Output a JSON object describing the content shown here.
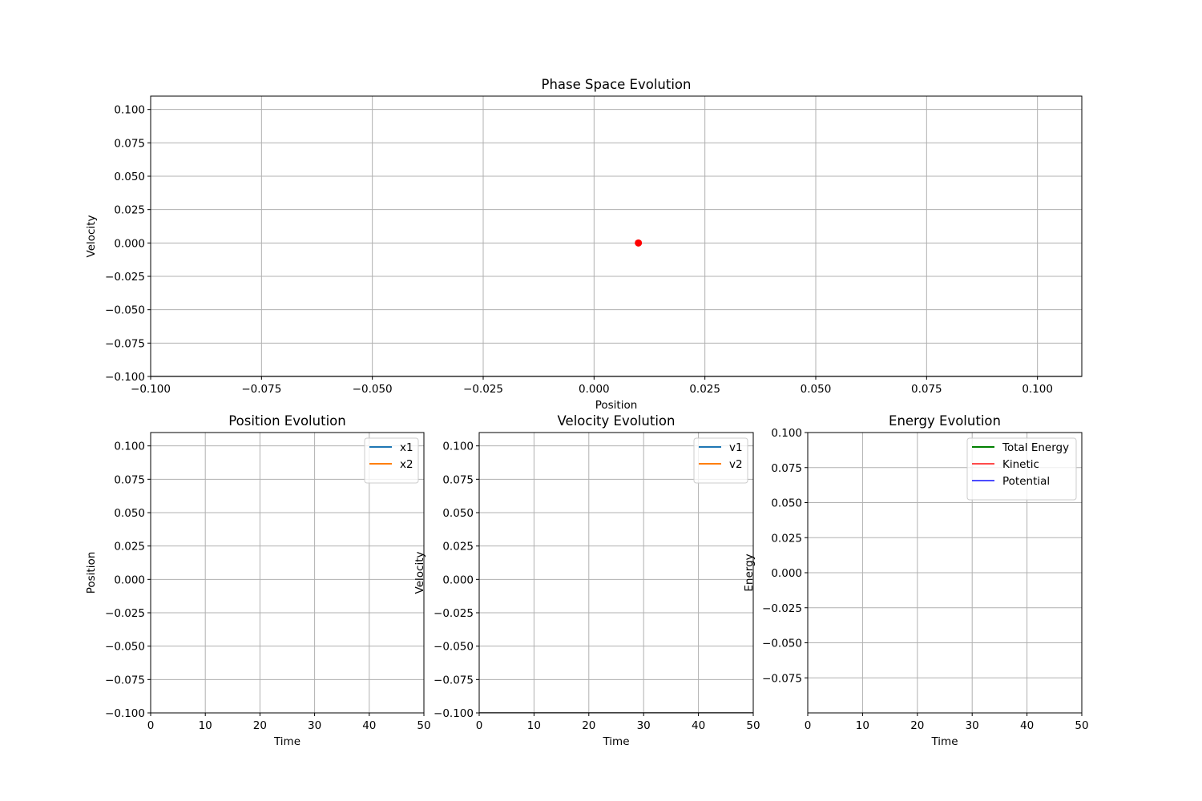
{
  "chart_data": [
    {
      "id": "phase",
      "type": "scatter",
      "title": "Phase Space Evolution",
      "xlabel": "Position",
      "ylabel": "Velocity",
      "xlim": [
        -0.1,
        0.11
      ],
      "ylim": [
        -0.1,
        0.11
      ],
      "xticks": [
        -0.1,
        -0.075,
        -0.05,
        -0.025,
        0.0,
        0.025,
        0.05,
        0.075,
        0.1
      ],
      "xtick_labels": [
        "−0.100",
        "−0.075",
        "−0.050",
        "−0.025",
        "0.000",
        "0.025",
        "0.050",
        "0.075",
        "0.100"
      ],
      "yticks": [
        -0.1,
        -0.075,
        -0.05,
        -0.025,
        0.0,
        0.025,
        0.05,
        0.075,
        0.1
      ],
      "ytick_labels": [
        "−0.100",
        "−0.075",
        "−0.050",
        "−0.025",
        "0.000",
        "0.025",
        "0.050",
        "0.075",
        "0.100"
      ],
      "grid": true,
      "legend": null,
      "series": [
        {
          "type": "line",
          "color": "#000000",
          "points": [
            [
              -0.1,
              -0.1
            ],
            [
              0.11,
              -0.1
            ]
          ]
        },
        {
          "type": "scatter",
          "color": "#ff0000",
          "points": [
            [
              0.01,
              0.0
            ]
          ]
        }
      ]
    },
    {
      "id": "position",
      "type": "line",
      "title": "Position Evolution",
      "xlabel": "Time",
      "ylabel": "Position",
      "xlim": [
        0,
        50
      ],
      "ylim": [
        -0.1,
        0.11
      ],
      "xticks": [
        0,
        10,
        20,
        30,
        40,
        50
      ],
      "xtick_labels": [
        "0",
        "10",
        "20",
        "30",
        "40",
        "50"
      ],
      "yticks": [
        -0.1,
        -0.075,
        -0.05,
        -0.025,
        0.0,
        0.025,
        0.05,
        0.075,
        0.1
      ],
      "ytick_labels": [
        "−0.100",
        "−0.075",
        "−0.050",
        "−0.025",
        "0.000",
        "0.025",
        "0.050",
        "0.075",
        "0.100"
      ],
      "grid": true,
      "legend": "top-right",
      "series": [
        {
          "name": "x1",
          "color": "#1f77b4",
          "points": []
        },
        {
          "name": "x2",
          "color": "#ff7f0e",
          "points": []
        }
      ]
    },
    {
      "id": "velocity",
      "type": "line",
      "title": "Velocity Evolution",
      "xlabel": "Time",
      "ylabel": "Velocity",
      "xlim": [
        0,
        50
      ],
      "ylim": [
        -0.1,
        0.11
      ],
      "xticks": [
        0,
        10,
        20,
        30,
        40,
        50
      ],
      "xtick_labels": [
        "0",
        "10",
        "20",
        "30",
        "40",
        "50"
      ],
      "yticks": [
        -0.1,
        -0.075,
        -0.05,
        -0.025,
        0.0,
        0.025,
        0.05,
        0.075,
        0.1
      ],
      "ytick_labels": [
        "−0.100",
        "−0.075",
        "−0.050",
        "−0.025",
        "0.000",
        "0.025",
        "0.050",
        "0.075",
        "0.100"
      ],
      "grid": true,
      "legend": "top-right",
      "series": [
        {
          "name": "v1",
          "color": "#1f77b4",
          "points": []
        },
        {
          "name": "v2",
          "color": "#ff7f0e",
          "points": []
        },
        {
          "color": "#000000",
          "points": [
            [
              0,
              -0.1
            ],
            [
              50,
              -0.1
            ]
          ]
        }
      ]
    },
    {
      "id": "energy",
      "type": "line",
      "title": "Energy Evolution",
      "xlabel": "Time",
      "ylabel": "Energy",
      "xlim": [
        0,
        50
      ],
      "ylim": [
        -0.1,
        0.1
      ],
      "xticks": [
        0,
        10,
        20,
        30,
        40,
        50
      ],
      "xtick_labels": [
        "0",
        "10",
        "20",
        "30",
        "40",
        "50"
      ],
      "yticks": [
        -0.075,
        -0.05,
        -0.025,
        0.0,
        0.025,
        0.05,
        0.075,
        0.1
      ],
      "ytick_labels": [
        "−0.075",
        "−0.050",
        "−0.025",
        "0.000",
        "0.025",
        "0.050",
        "0.075",
        "0.100"
      ],
      "grid": true,
      "legend": "top-right",
      "series": [
        {
          "name": "Total Energy",
          "color": "#008000",
          "points": []
        },
        {
          "name": "Kinetic",
          "color": "#ff0000",
          "alpha": 0.7,
          "points": []
        },
        {
          "name": "Potential",
          "color": "#0000ff",
          "alpha": 0.7,
          "points": []
        }
      ]
    }
  ]
}
